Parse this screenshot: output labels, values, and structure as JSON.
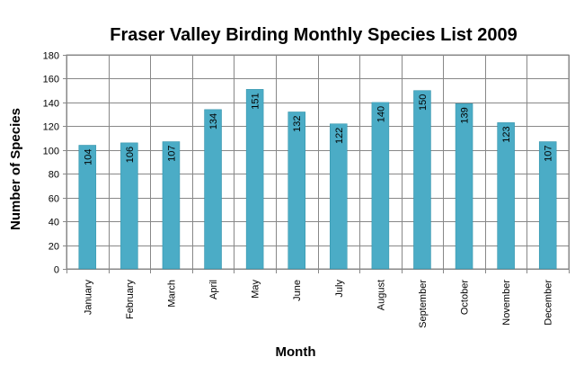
{
  "chart_data": {
    "type": "bar",
    "title": "Fraser Valley Birding Monthly Species List 2009",
    "xlabel": "Month",
    "ylabel": "Number of Species",
    "categories": [
      "January",
      "February",
      "March",
      "April",
      "May",
      "June",
      "July",
      "August",
      "September",
      "October",
      "November",
      "December"
    ],
    "values": [
      104,
      106,
      107,
      134,
      151,
      132,
      122,
      140,
      150,
      139,
      123,
      107
    ],
    "ylim": [
      0,
      180
    ],
    "yticks": [
      0,
      20,
      40,
      60,
      80,
      100,
      120,
      140,
      160,
      180
    ],
    "grid": true,
    "legend": "none",
    "bar_color": "#4BACC6",
    "bar_edge_color": "#2E8FA6",
    "grid_color": "#888888"
  }
}
